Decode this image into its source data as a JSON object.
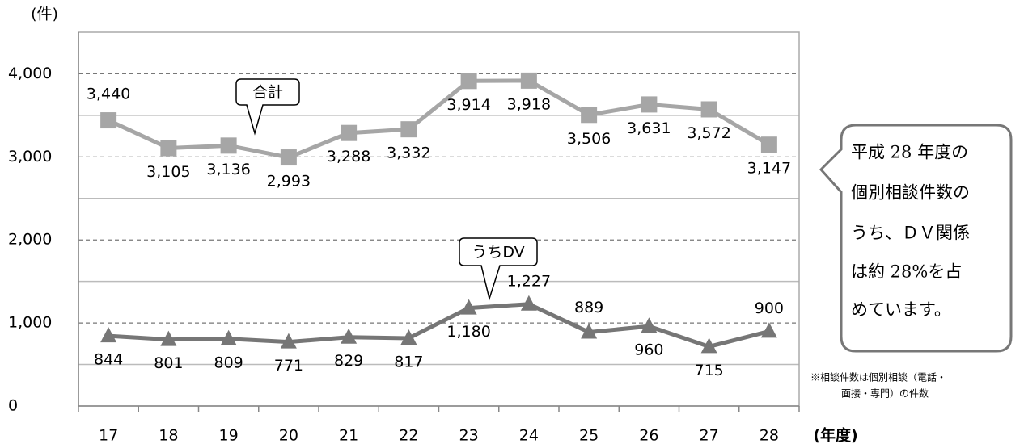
{
  "chart_data": {
    "type": "line",
    "y_axis_label": "(件)",
    "x_axis_label": "(年度)",
    "categories": [
      "17",
      "18",
      "19",
      "20",
      "21",
      "22",
      "23",
      "24",
      "25",
      "26",
      "27",
      "28"
    ],
    "series": [
      {
        "name": "合計",
        "color": "#a6a6a6",
        "marker": "square",
        "values": [
          3440,
          3105,
          3136,
          2993,
          3288,
          3332,
          3914,
          3918,
          3506,
          3631,
          3572,
          3147
        ],
        "value_labels": [
          "3,440",
          "3,105",
          "3,136",
          "2,993",
          "3,288",
          "3,332",
          "3,914",
          "3,918",
          "3,506",
          "3,631",
          "3,572",
          "3,147"
        ]
      },
      {
        "name": "うちDV",
        "color": "#767676",
        "marker": "triangle",
        "values": [
          844,
          801,
          809,
          771,
          829,
          817,
          1180,
          1227,
          889,
          960,
          715,
          900
        ],
        "value_labels": [
          "844",
          "801",
          "809",
          "771",
          "829",
          "817",
          "1,180",
          "1,227",
          "889",
          "960",
          "715",
          "900"
        ]
      }
    ],
    "ylim": [
      0,
      4500
    ],
    "yticks": [
      0,
      {
        "value": 1000,
        "label": "1,000"
      },
      {
        "value": 2000,
        "label": "2,000"
      },
      {
        "value": 3000,
        "label": "3,000"
      },
      {
        "value": 4000,
        "label": "4,000"
      }
    ],
    "minor_yticks": [
      500,
      1500,
      2500,
      3500
    ],
    "grid": true,
    "note_lines": [
      "平成 28 年度の",
      "個別相談件数の",
      "うち、ＤＶ関係",
      "は約 28%を占",
      "めています。"
    ],
    "footnote_lines": [
      "※相談件数は個別相談（電話・",
      "面接・専門）の件数"
    ]
  }
}
